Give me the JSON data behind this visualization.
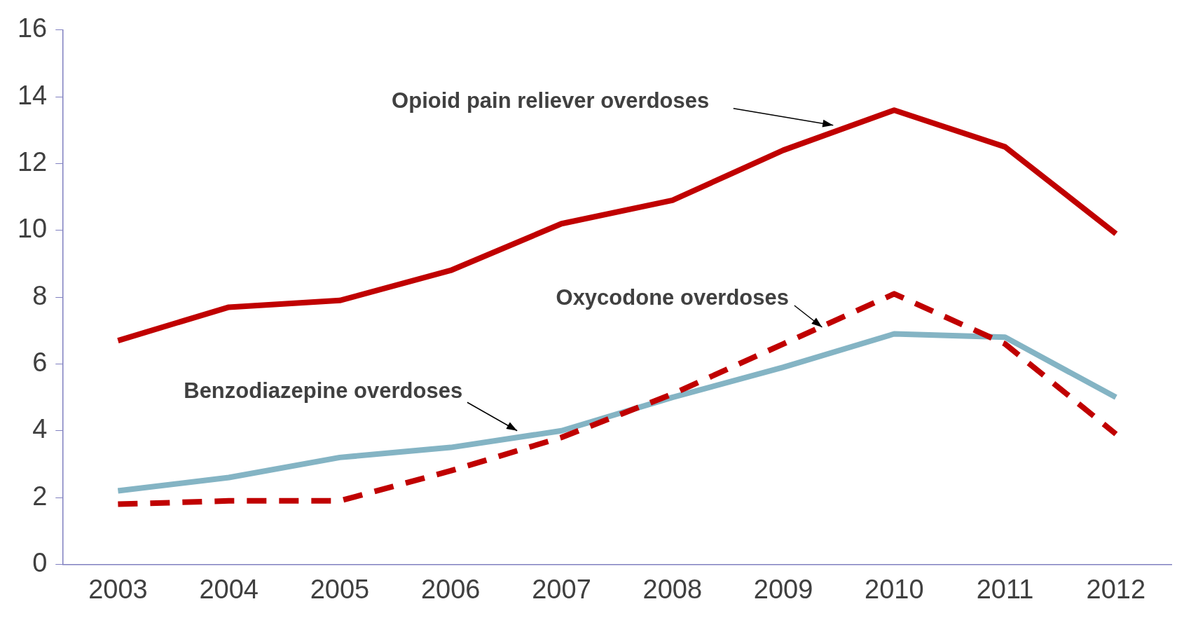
{
  "chart_data": {
    "type": "line",
    "categories": [
      "2003",
      "2004",
      "2005",
      "2006",
      "2007",
      "2008",
      "2009",
      "2010",
      "2011",
      "2012"
    ],
    "series": [
      {
        "name": "Opioid pain reliever overdoses",
        "color": "#c00000",
        "line_style": "solid",
        "values": [
          6.7,
          7.7,
          7.9,
          8.8,
          10.2,
          10.9,
          12.4,
          13.6,
          12.5,
          9.9
        ]
      },
      {
        "name": "Oxycodone overdoses",
        "color": "#c00000",
        "line_style": "dashed",
        "values": [
          1.8,
          1.9,
          1.9,
          2.8,
          3.8,
          5.1,
          6.6,
          8.1,
          6.6,
          3.9
        ]
      },
      {
        "name": "Benzodiazepine overdoses",
        "color": "#84b4c4",
        "line_style": "solid",
        "values": [
          2.2,
          2.6,
          3.2,
          3.5,
          4.0,
          5.0,
          5.9,
          6.9,
          6.8,
          5.0
        ]
      }
    ],
    "ylim": [
      0,
      16
    ],
    "yticks": [
      0,
      2,
      4,
      6,
      8,
      10,
      12,
      14,
      16
    ],
    "grid": false,
    "legend": false,
    "marker": "none"
  }
}
